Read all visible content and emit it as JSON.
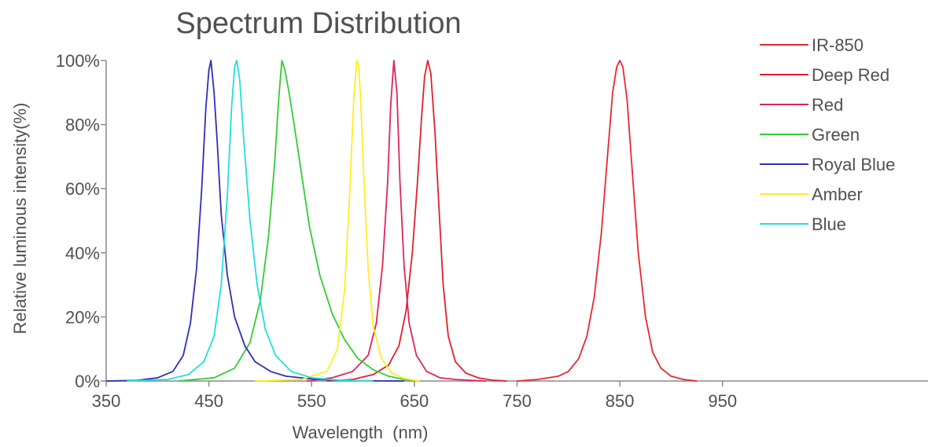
{
  "chart_data": {
    "type": "line",
    "title": "Spectrum Distribution",
    "xlabel": "Wavelength  (nm)",
    "ylabel": "Relative luminous intensity(%)",
    "xlim": [
      350,
      1150
    ],
    "ylim": [
      0,
      100
    ],
    "x_ticks": [
      "350",
      "450",
      "550",
      "650",
      "750",
      "850",
      "950"
    ],
    "y_ticks": [
      "0%",
      "20%",
      "40%",
      "60%",
      "80%",
      "100%"
    ],
    "grid": false,
    "legend_position": "top-right",
    "series": [
      {
        "name": "IR-850",
        "color": "#e8282f",
        "x": [
          750,
          770,
          790,
          800,
          810,
          818,
          825,
          832,
          838,
          843,
          847,
          850,
          853,
          857,
          862,
          868,
          875,
          882,
          890,
          900,
          912,
          925
        ],
        "y": [
          0,
          0.5,
          1.5,
          3,
          7,
          14,
          26,
          46,
          70,
          90,
          98,
          100,
          98,
          88,
          66,
          40,
          20,
          9,
          4,
          1.5,
          0.5,
          0
        ]
      },
      {
        "name": "Deep Red",
        "color": "#e0202a",
        "x": [
          565,
          590,
          610,
          625,
          635,
          642,
          648,
          653,
          657,
          660,
          663,
          666,
          670,
          674,
          678,
          683,
          690,
          700,
          712,
          725,
          740
        ],
        "y": [
          0,
          0.5,
          2,
          5,
          11,
          22,
          40,
          62,
          82,
          95,
          100,
          96,
          78,
          54,
          30,
          14,
          6,
          2.5,
          1,
          0.3,
          0
        ]
      },
      {
        "name": "Red",
        "color": "#e0245a",
        "x": [
          545,
          570,
          590,
          605,
          613,
          619,
          624,
          627,
          630,
          633,
          636,
          640,
          645,
          652,
          662,
          675,
          690,
          705,
          720
        ],
        "y": [
          0,
          1,
          3,
          8,
          18,
          36,
          62,
          86,
          100,
          90,
          62,
          36,
          18,
          8,
          3,
          1,
          0.5,
          0.2,
          0
        ]
      },
      {
        "name": "Green",
        "color": "#33cc33",
        "x": [
          420,
          455,
          475,
          490,
          500,
          508,
          514,
          518,
          521,
          524,
          528,
          533,
          540,
          548,
          558,
          570,
          582,
          595,
          610,
          625,
          640,
          655
        ],
        "y": [
          0,
          1,
          4,
          12,
          25,
          45,
          68,
          88,
          100,
          97,
          90,
          80,
          65,
          48,
          33,
          21,
          13,
          7,
          3.5,
          1.5,
          0.5,
          0
        ]
      },
      {
        "name": "Royal Blue",
        "color": "#2e2eb8",
        "x": [
          350,
          380,
          400,
          415,
          425,
          432,
          438,
          443,
          447,
          450,
          452,
          455,
          458,
          462,
          468,
          475,
          485,
          495,
          510,
          525,
          545,
          570,
          600,
          640
        ],
        "y": [
          0,
          0.2,
          1,
          3,
          8,
          18,
          35,
          60,
          85,
          97,
          100,
          90,
          75,
          52,
          33,
          20,
          11,
          6,
          3,
          1.5,
          0.8,
          0.3,
          0.1,
          0
        ]
      },
      {
        "name": "Amber",
        "color": "#ffee22",
        "x": [
          495,
          540,
          565,
          575,
          582,
          587,
          591,
          594,
          596,
          598,
          601,
          605,
          610,
          618,
          628,
          640,
          655
        ],
        "y": [
          0,
          0.5,
          3,
          10,
          28,
          58,
          88,
          100,
          98,
          86,
          62,
          35,
          17,
          7,
          2.5,
          0.8,
          0
        ]
      },
      {
        "name": "Blue",
        "color": "#22dddd",
        "x": [
          370,
          410,
          430,
          445,
          455,
          462,
          468,
          472,
          475,
          477,
          480,
          484,
          490,
          497,
          505,
          515,
          530,
          550,
          575,
          610
        ],
        "y": [
          0,
          0.5,
          2,
          6,
          14,
          30,
          58,
          85,
          98,
          100,
          94,
          75,
          50,
          30,
          16,
          8,
          3,
          1,
          0.3,
          0
        ]
      }
    ]
  }
}
